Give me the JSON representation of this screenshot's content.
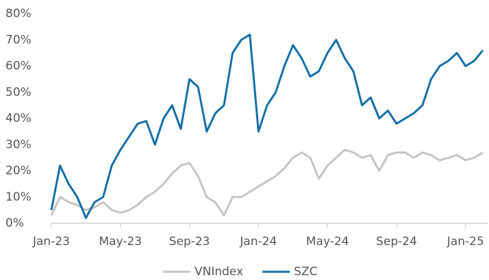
{
  "chart_data": {
    "type": "line",
    "categories": [
      "Jan-23",
      null,
      null,
      null,
      null,
      null,
      null,
      null,
      "May-23",
      null,
      null,
      null,
      null,
      null,
      null,
      null,
      "Sep-23",
      null,
      null,
      null,
      null,
      null,
      null,
      null,
      "Jan-24",
      null,
      null,
      null,
      null,
      null,
      null,
      null,
      "May-24",
      null,
      null,
      null,
      null,
      null,
      null,
      null,
      "Sep-24",
      null,
      null,
      null,
      null,
      null,
      null,
      null,
      "Jan-25",
      null,
      null
    ],
    "series": [
      {
        "name": "VNIndex",
        "color": "#c4c4c4",
        "values": [
          3,
          10,
          8,
          7,
          5,
          6,
          8,
          5,
          4,
          5,
          7,
          10,
          12,
          15,
          19,
          22,
          23,
          18,
          10,
          8,
          3,
          10,
          10,
          12,
          14,
          16,
          18,
          21,
          25,
          27,
          25,
          17,
          22,
          25,
          28,
          27,
          25,
          26,
          20,
          26,
          27,
          27,
          25,
          27,
          26,
          24,
          25,
          26,
          24,
          25,
          27
        ]
      },
      {
        "name": "SZC",
        "color": "#146ea6",
        "values": [
          5,
          22,
          15,
          10,
          2,
          8,
          10,
          22,
          28,
          33,
          38,
          39,
          30,
          40,
          45,
          36,
          55,
          52,
          35,
          42,
          45,
          65,
          70,
          72,
          35,
          45,
          50,
          60,
          68,
          63,
          56,
          58,
          65,
          70,
          63,
          58,
          45,
          48,
          40,
          43,
          38,
          40,
          42,
          45,
          55,
          60,
          62,
          65,
          60,
          62,
          66
        ]
      }
    ],
    "ylim": [
      0,
      80
    ],
    "yticks": [
      {
        "value": 0,
        "label": "0%"
      },
      {
        "value": 10,
        "label": "10%"
      },
      {
        "value": 20,
        "label": "20%"
      },
      {
        "value": 30,
        "label": "30%"
      },
      {
        "value": 40,
        "label": "40%"
      },
      {
        "value": 50,
        "label": "50%"
      },
      {
        "value": 60,
        "label": "60%"
      },
      {
        "value": 70,
        "label": "70%"
      },
      {
        "value": 80,
        "label": "80%"
      }
    ],
    "grid": false,
    "legend": "bottom"
  }
}
